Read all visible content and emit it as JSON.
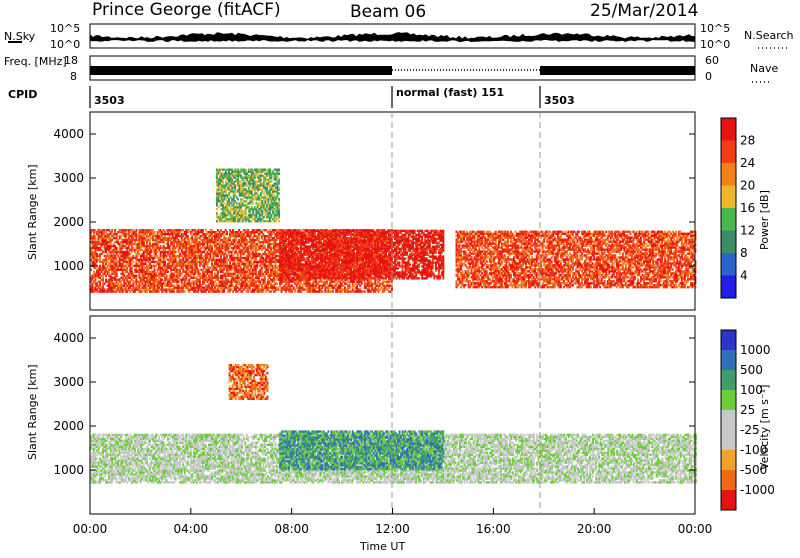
{
  "header": {
    "station": "Prince George (fitACF)",
    "beam": "Beam 06",
    "date": "25/Mar/2014"
  },
  "colors": {
    "power": [
      "#1f1fe8",
      "#2a64c8",
      "#3c8c6a",
      "#48b84a",
      "#f2b62d",
      "#f37f1b",
      "#ef3d16",
      "#e81212"
    ],
    "velocity": [
      "#2b35c8",
      "#2f70b8",
      "#3e9c6e",
      "#6ccf3a",
      "#c8c8c8",
      "#c8c8c8",
      "#f2a12d",
      "#ee6a16",
      "#e81212"
    ]
  },
  "chart_data": [
    {
      "type": "line",
      "panel": "N.Sky",
      "ylabel": "N.Sky",
      "ylabel_right": "N.Search",
      "yticks": [
        "10^5",
        "10^0"
      ],
      "yticks_right": [
        "10^5",
        "10^0"
      ]
    },
    {
      "type": "line",
      "panel": "Freq / Nave",
      "ylabel": "Freq. [MHz]",
      "ylabel_right": "Nave",
      "yticks": [
        "18",
        "8"
      ],
      "yticks_right": [
        "60",
        "0"
      ]
    },
    {
      "type": "table",
      "panel": "CPID",
      "label": "CPID",
      "segments": [
        {
          "start": 0,
          "end": 12,
          "text": "3503"
        },
        {
          "start": 12,
          "end": 18,
          "text": "normal (fast) 151"
        },
        {
          "start": 18,
          "end": 24,
          "text": "3503"
        }
      ]
    },
    {
      "type": "heatmap",
      "panel": "power",
      "ylabel": "Slant Range [km]",
      "ylim": [
        0,
        4500
      ],
      "yticks": [
        1000,
        2000,
        3000,
        4000
      ],
      "xlim": [
        0,
        24
      ],
      "colorbar": {
        "label": "Power [dB]",
        "ticks": [
          "4",
          "8",
          "12",
          "16",
          "20",
          "24",
          "28"
        ]
      },
      "echo_regions": [
        {
          "t0": 0.0,
          "t1": 12.0,
          "r0": 400,
          "r1": 1800,
          "level": 6
        },
        {
          "t0": 7.5,
          "t1": 14.0,
          "r0": 700,
          "r1": 1800,
          "level": 7
        },
        {
          "t0": 14.5,
          "t1": 24.0,
          "r0": 500,
          "r1": 1800,
          "level": 6
        },
        {
          "t0": 5.0,
          "t1": 7.5,
          "r0": 2000,
          "r1": 3200,
          "level": 3
        }
      ]
    },
    {
      "type": "heatmap",
      "panel": "velocity",
      "ylabel": "Slant Range [km]",
      "xlabel": "Time UT",
      "ylim": [
        0,
        4500
      ],
      "yticks": [
        1000,
        2000,
        3000,
        4000
      ],
      "xlim": [
        0,
        24
      ],
      "xticks": [
        "00:00",
        "04:00",
        "08:00",
        "12:00",
        "16:00",
        "20:00",
        "00:00"
      ],
      "colorbar": {
        "label": "Velocity [m s⁻¹]",
        "ticks": [
          "1000",
          "500",
          "100",
          "25",
          "-25",
          "-100",
          "-500",
          "-1000"
        ]
      },
      "echo_regions": [
        {
          "t0": 0.0,
          "t1": 24.0,
          "r0": 700,
          "r1": 1800,
          "level": 4
        },
        {
          "t0": 7.5,
          "t1": 14.0,
          "r0": 1000,
          "r1": 1900,
          "level": 2
        },
        {
          "t0": 5.5,
          "t1": 7.0,
          "r0": 2600,
          "r1": 3400,
          "level": 7
        }
      ]
    }
  ]
}
